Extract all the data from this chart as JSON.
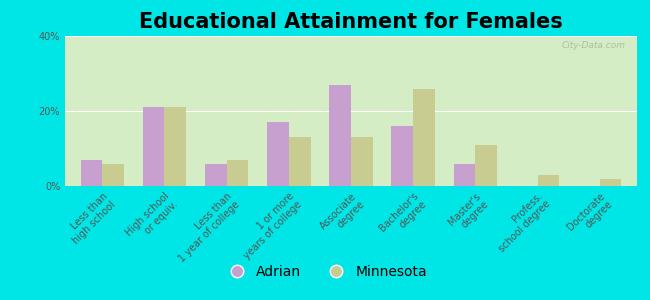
{
  "title": "Educational Attainment for Females",
  "categories": [
    "Less than\nhigh school",
    "High school\nor equiv.",
    "Less than\n1 year of college",
    "1 or more\nyears of college",
    "Associate\ndegree",
    "Bachelor's\ndegree",
    "Master's\ndegree",
    "Profess.\nschool degree",
    "Doctorate\ndegree"
  ],
  "adrian_values": [
    7.0,
    21.0,
    6.0,
    17.0,
    27.0,
    16.0,
    6.0,
    0.0,
    0.0
  ],
  "minnesota_values": [
    6.0,
    21.0,
    7.0,
    13.0,
    13.0,
    26.0,
    11.0,
    3.0,
    2.0
  ],
  "adrian_color": "#c8a0d0",
  "minnesota_color": "#c8cc90",
  "background_color": "#d4edc4",
  "outer_bg": "#00e5e5",
  "ylim": [
    0,
    40
  ],
  "yticks": [
    0,
    20,
    40
  ],
  "ytick_labels": [
    "0%",
    "20%",
    "40%"
  ],
  "legend_adrian": "Adrian",
  "legend_minnesota": "Minnesota",
  "title_fontsize": 15,
  "tick_fontsize": 7.0,
  "legend_fontsize": 10,
  "bar_width": 0.35,
  "watermark": "City-Data.com"
}
